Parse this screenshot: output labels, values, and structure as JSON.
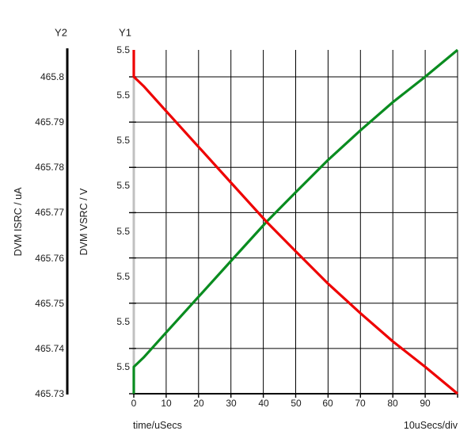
{
  "plot": {
    "y2_axis_title": "Y2",
    "y1_axis_title": "Y1",
    "y2_unit_label": "DVM ISRC / uA",
    "y1_unit_label": "DVM VSRC / V",
    "x_axis_label": "time/uSecs",
    "x_scale_label": "10uSecs/div"
  },
  "colors": {
    "background": "#ffffff",
    "grid": "#000000",
    "y1_axis_line": "#c0c0c0",
    "y2_axis_line": "#000000",
    "x_axis_line": "#000000",
    "text": "#1c1c1c",
    "trace_isrc": "#ee0000",
    "trace_vsrc": "#0a8c20"
  },
  "chart_data": {
    "type": "line",
    "title": "",
    "grid": true,
    "legend": false,
    "x_axis": {
      "label": "time/uSecs",
      "unit": "uSecs",
      "per_division": "10uSecs/div",
      "range": [
        0,
        100
      ],
      "tick_values": [
        0,
        10,
        20,
        30,
        40,
        50,
        60,
        70,
        80,
        90
      ]
    },
    "y_axes": [
      {
        "id": "Y1",
        "label": "DVM VSRC / V",
        "tick_labels": [
          "5.5",
          "5.5",
          "5.5",
          "5.5",
          "5.5",
          "5.5",
          "5.5",
          "5.5"
        ],
        "note": "all tick labels display 5.5 at the shown precision; ticks fall between gridlines"
      },
      {
        "id": "Y2",
        "label": "DVM ISRC / uA",
        "tick_labels": [
          "465.8",
          "465.79",
          "465.78",
          "465.77",
          "465.76",
          "465.75",
          "465.74",
          "465.73"
        ],
        "range": [
          465.73,
          465.8
        ],
        "per_division": 0.01,
        "note": "horizontal gridlines align with these ticks"
      }
    ],
    "series": [
      {
        "name": "DVM VSRC",
        "axis": "Y1",
        "unit": "V",
        "color": "#0a8c20",
        "display_value": "5.5",
        "shape_note": "starts at plot bottom at t=0, vertical jump, then rises with slight concave easing to plot top at t=100",
        "points_t_frac": [
          [
            0,
            0.0
          ],
          [
            0,
            0.078
          ],
          [
            3,
            0.105
          ],
          [
            10,
            0.178
          ],
          [
            20,
            0.282
          ],
          [
            30,
            0.386
          ],
          [
            41,
            0.5
          ],
          [
            50,
            0.586
          ],
          [
            60,
            0.68
          ],
          [
            70,
            0.766
          ],
          [
            80,
            0.848
          ],
          [
            90,
            0.922
          ],
          [
            100,
            1.0
          ]
        ]
      },
      {
        "name": "DVM ISRC",
        "axis": "Y2",
        "unit": "uA",
        "color": "#ee0000",
        "shape_note": "starts above 465.8 at t=0, vertical drop to 465.8, then falls with slight convex easing to 465.73 at t=100",
        "points": [
          [
            0,
            465.806
          ],
          [
            0,
            465.8
          ],
          [
            3,
            465.798
          ],
          [
            10,
            465.792
          ],
          [
            20,
            465.785
          ],
          [
            30,
            465.777
          ],
          [
            41,
            465.768
          ],
          [
            50,
            465.761
          ],
          [
            60,
            465.754
          ],
          [
            70,
            465.748
          ],
          [
            80,
            465.742
          ],
          [
            90,
            465.736
          ],
          [
            100,
            465.73
          ]
        ],
        "points_t_frac": [
          [
            0,
            1.0
          ],
          [
            0,
            0.922
          ],
          [
            3,
            0.895
          ],
          [
            10,
            0.822
          ],
          [
            20,
            0.718
          ],
          [
            30,
            0.614
          ],
          [
            41,
            0.5
          ],
          [
            50,
            0.414
          ],
          [
            60,
            0.32
          ],
          [
            70,
            0.234
          ],
          [
            80,
            0.152
          ],
          [
            90,
            0.078
          ],
          [
            100,
            0.0
          ]
        ]
      }
    ]
  }
}
